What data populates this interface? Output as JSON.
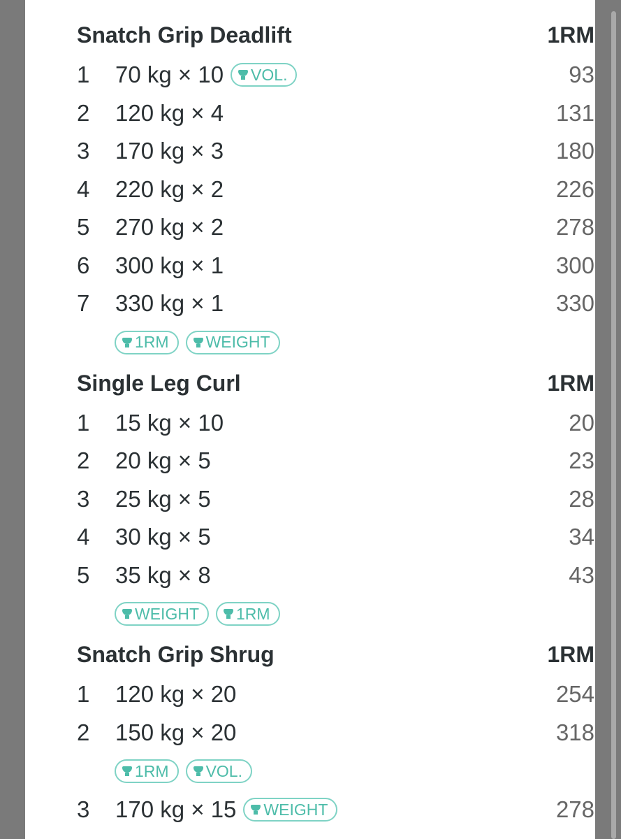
{
  "colors": {
    "accent": "#4dbca9",
    "text": "#2b3134",
    "muted": "#666666"
  },
  "exercises": [
    {
      "name": "Snatch Grip Deadlift",
      "col": "1RM",
      "sets": [
        {
          "n": "1",
          "set": "70 kg × 10",
          "rm": "93",
          "badges": [
            "VOL."
          ]
        },
        {
          "n": "2",
          "set": "120 kg × 4",
          "rm": "131"
        },
        {
          "n": "3",
          "set": "170 kg × 3",
          "rm": "180"
        },
        {
          "n": "4",
          "set": "220 kg × 2",
          "rm": "226"
        },
        {
          "n": "5",
          "set": "270 kg × 2",
          "rm": "278"
        },
        {
          "n": "6",
          "set": "300 kg × 1",
          "rm": "300"
        },
        {
          "n": "7",
          "set": "330 kg × 1",
          "rm": "330",
          "badges_below": [
            "1RM",
            "WEIGHT"
          ]
        }
      ]
    },
    {
      "name": "Single Leg Curl",
      "col": "1RM",
      "sets": [
        {
          "n": "1",
          "set": "15 kg × 10",
          "rm": "20"
        },
        {
          "n": "2",
          "set": "20 kg × 5",
          "rm": "23"
        },
        {
          "n": "3",
          "set": "25 kg × 5",
          "rm": "28"
        },
        {
          "n": "4",
          "set": "30 kg × 5",
          "rm": "34"
        },
        {
          "n": "5",
          "set": "35 kg × 8",
          "rm": "43",
          "badges_below": [
            "WEIGHT",
            "1RM"
          ]
        }
      ]
    },
    {
      "name": "Snatch Grip Shrug",
      "col": "1RM",
      "sets": [
        {
          "n": "1",
          "set": "120 kg × 20",
          "rm": "254"
        },
        {
          "n": "2",
          "set": "150 kg × 20",
          "rm": "318",
          "badges_below": [
            "1RM",
            "VOL."
          ]
        },
        {
          "n": "3",
          "set": "170 kg × 15",
          "rm": "278",
          "badges": [
            "WEIGHT"
          ]
        }
      ]
    }
  ]
}
